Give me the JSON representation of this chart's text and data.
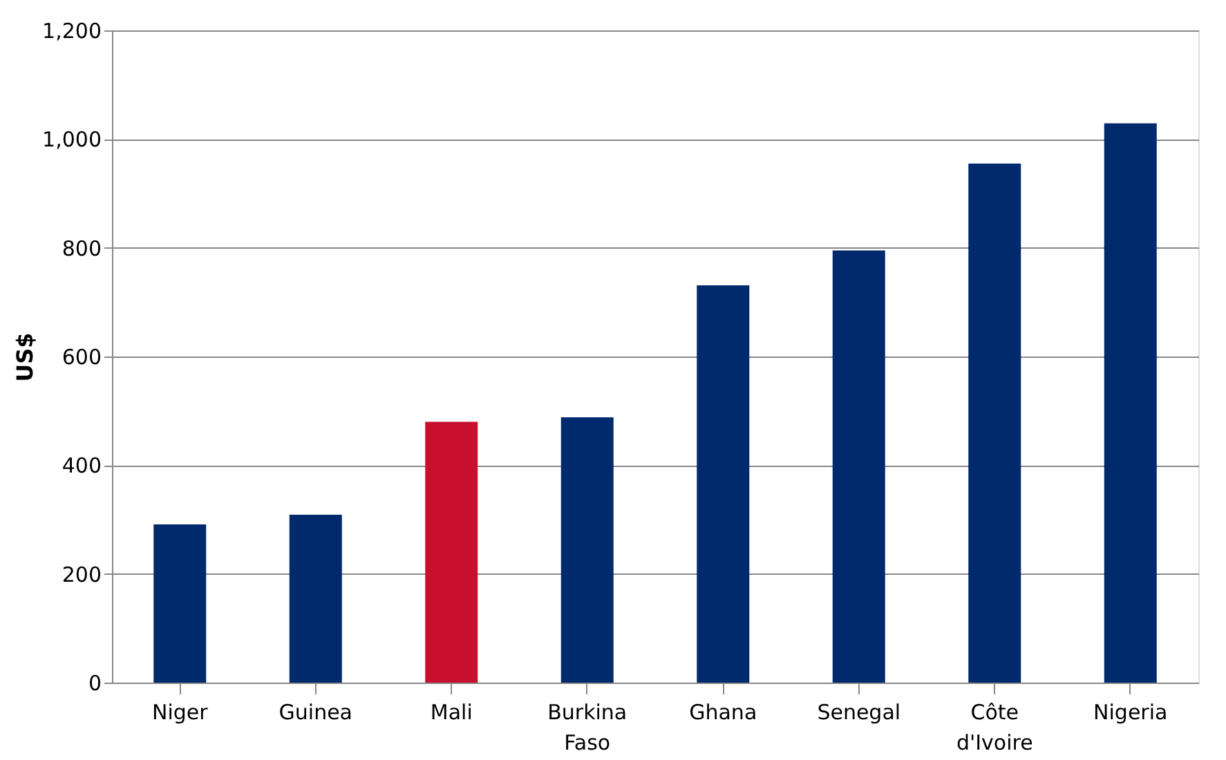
{
  "chart_data": {
    "type": "bar",
    "ylabel": "US$",
    "categories": [
      "Niger",
      "Guinea",
      "Mali",
      "Burkina Faso",
      "Ghana",
      "Senegal",
      "Côte d'Ivoire",
      "Nigeria"
    ],
    "values": [
      291,
      309,
      480,
      488,
      731,
      795,
      955,
      1029
    ],
    "colors": [
      "#002a6c",
      "#002a6c",
      "#c8102e",
      "#002a6c",
      "#002a6c",
      "#002a6c",
      "#002a6c",
      "#002a6c"
    ],
    "ylim": [
      0,
      1200
    ],
    "yticks": [
      0,
      200,
      400,
      600,
      800,
      {
        "value": 1000,
        "label": "1,000"
      },
      {
        "value": 1200,
        "label": "1,200"
      }
    ],
    "grid": "y"
  }
}
